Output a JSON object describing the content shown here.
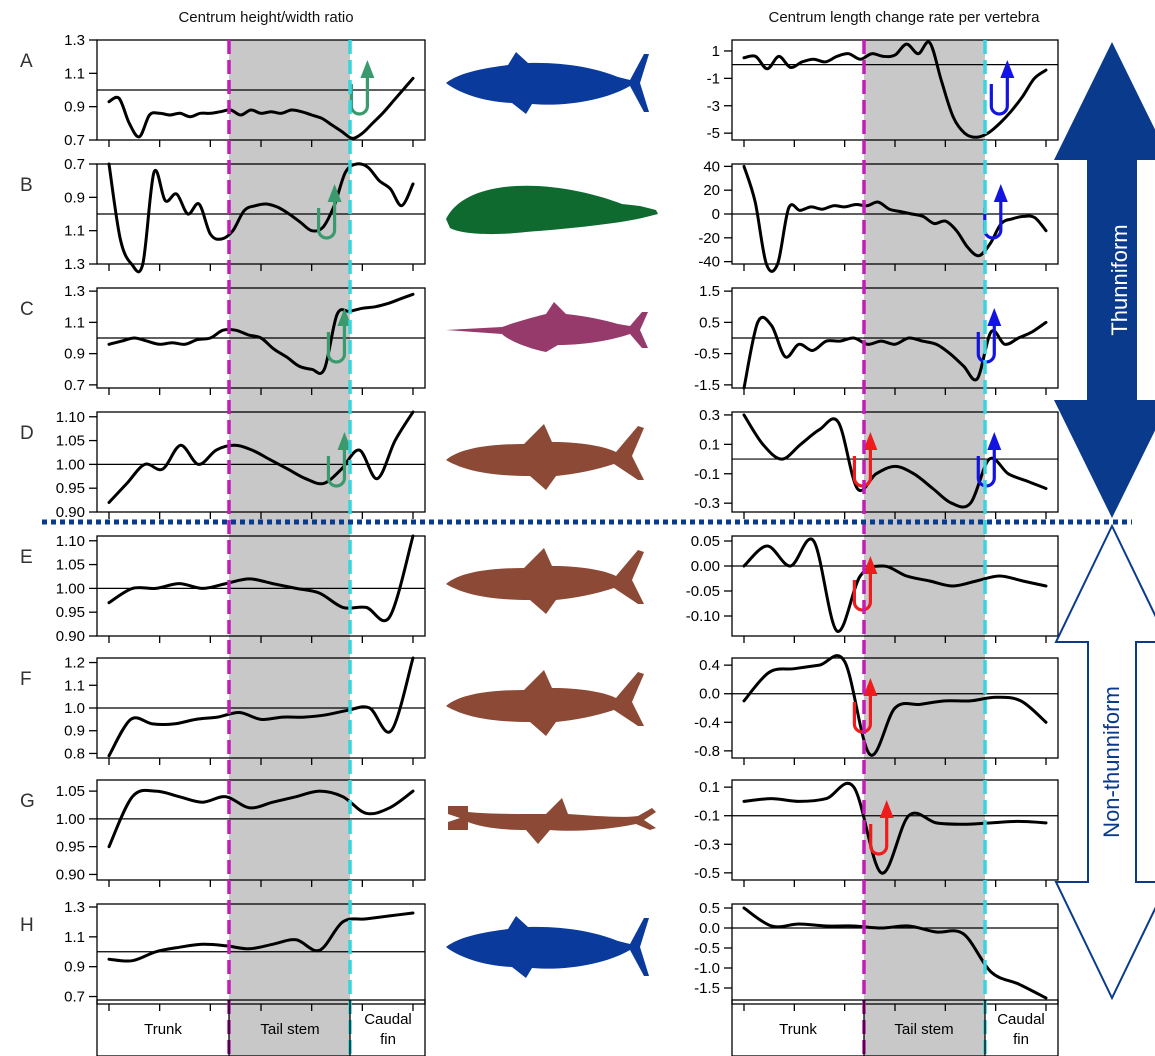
{
  "titles": {
    "left": "Centrum height/width ratio",
    "right": "Centrum length change rate per vertebra"
  },
  "segments": {
    "trunk": "Trunk",
    "tail_stem": "Tail stem",
    "caudal_fin_1": "Caudal",
    "caudal_fin_2": "fin"
  },
  "groups": {
    "thunniform": "Thunniform",
    "non_thunniform": "Non-thunniform"
  },
  "colors": {
    "tail_stem_shade": "#c8c8c8",
    "start_line": "#c21db6",
    "end_line": "#39d4dc",
    "marker_green": "#3a9a6e",
    "marker_blue": "#1414e0",
    "marker_red": "#ee1c1c",
    "tuna_blue": "#0a3a9c",
    "whale_green": "#0e6a2e",
    "marlin_purple": "#963a6c",
    "shark_brown": "#8c4a36",
    "group_arrow": "#0a3a8c"
  },
  "icons": [
    "tuna-silhouette-icon",
    "whale-silhouette-icon",
    "marlin-silhouette-icon",
    "shark-silhouette-icon",
    "hammerhead-silhouette-icon"
  ],
  "chart_data": {
    "type": "line",
    "x_segments": [
      "Trunk",
      "Tail stem",
      "Caudal fin"
    ],
    "panels": [
      {
        "label": "A",
        "silhouette": "tuna",
        "left": {
          "ylim": [
            0.7,
            1.3
          ],
          "ticks": [
            "0.7",
            "0.9",
            "1.1",
            "1.3"
          ],
          "tick_values": [
            0.7,
            0.9,
            1.1,
            1.3
          ],
          "ref": 1.0,
          "inverted": false,
          "y": [
            0.93,
            0.95,
            0.8,
            0.72,
            0.85,
            0.86,
            0.85,
            0.86,
            0.84,
            0.86,
            0.86,
            0.87,
            0.88,
            0.85,
            0.88,
            0.86,
            0.87,
            0.86,
            0.88,
            0.87,
            0.85,
            0.83,
            0.79,
            0.75,
            0.71,
            0.74,
            0.8,
            0.86,
            0.93,
            1.0,
            1.07
          ],
          "markers": [
            {
              "type": "green",
              "x": 0.8
            }
          ]
        },
        "right": {
          "ylim": [
            -5.5,
            1.8
          ],
          "ticks": [
            "1",
            "-1",
            "-3",
            "-5"
          ],
          "tick_values": [
            1,
            -1,
            -3,
            -5
          ],
          "ref": 0.0,
          "inverted": false,
          "y": [
            0.5,
            0.6,
            -0.3,
            0.6,
            -0.2,
            0.2,
            0.4,
            0.2,
            0.6,
            0.8,
            0.4,
            0.8,
            0.6,
            0.7,
            1.5,
            0.8,
            1.6,
            -1.2,
            -3.8,
            -5.0,
            -5.3,
            -5.0,
            -4.3,
            -3.4,
            -2.3,
            -1.0,
            -0.4
          ],
          "markers": [
            {
              "type": "blue",
              "x": 0.82
            }
          ]
        }
      },
      {
        "label": "B",
        "silhouette": "whale",
        "left": {
          "ylim": [
            0.7,
            1.3
          ],
          "ticks": [
            "0.7",
            "0.9",
            "1.1",
            "1.3"
          ],
          "tick_values": [
            0.7,
            0.9,
            1.1,
            1.3
          ],
          "ref": 1.0,
          "inverted": true,
          "y": [
            0.7,
            1.15,
            1.32,
            1.33,
            0.75,
            0.92,
            0.88,
            1.0,
            0.94,
            1.12,
            1.15,
            1.1,
            0.98,
            0.95,
            0.94,
            0.96,
            1.0,
            1.05,
            1.1,
            1.08,
            0.95,
            0.75,
            0.68,
            0.72,
            0.8,
            0.85,
            0.95,
            0.82
          ],
          "markers": [
            {
              "type": "green",
              "x": 0.7
            }
          ]
        },
        "right": {
          "ylim": [
            -42,
            42
          ],
          "ticks": [
            "40",
            "20",
            "0",
            "-20",
            "-40"
          ],
          "tick_values": [
            40,
            20,
            0,
            -20,
            -40
          ],
          "ref": 0.0,
          "inverted": false,
          "y": [
            40,
            10,
            -42,
            -42,
            5,
            3,
            6,
            4,
            7,
            6,
            8,
            7,
            10,
            4,
            2,
            0,
            -2,
            -8,
            -6,
            -14,
            -28,
            -35,
            -25,
            -8,
            -4,
            -2,
            -3,
            -14
          ],
          "markers": [
            {
              "type": "blue",
              "x": 0.8
            }
          ]
        }
      },
      {
        "label": "C",
        "silhouette": "marlin",
        "left": {
          "ylim": [
            0.68,
            1.32
          ],
          "ticks": [
            "0.7",
            "0.9",
            "1.1",
            "1.3"
          ],
          "tick_values": [
            0.7,
            0.9,
            1.1,
            1.3
          ],
          "ref": 1.0,
          "inverted": false,
          "y": [
            0.96,
            0.98,
            1.0,
            0.98,
            0.96,
            0.97,
            0.96,
            0.99,
            1.0,
            1.05,
            1.05,
            1.02,
            1.0,
            0.93,
            0.88,
            0.82,
            0.8,
            0.8,
            1.15,
            1.17,
            1.19,
            1.2,
            1.22,
            1.25,
            1.28
          ],
          "markers": [
            {
              "type": "green",
              "x": 0.73
            }
          ]
        },
        "right": {
          "ylim": [
            -1.6,
            1.6
          ],
          "ticks": [
            "1.5",
            "0.5",
            "-0.5",
            "-1.5"
          ],
          "tick_values": [
            1.5,
            0.5,
            -0.5,
            -1.5
          ],
          "ref": 0.0,
          "inverted": false,
          "y": [
            -1.6,
            0.5,
            0.4,
            -0.6,
            -0.2,
            -0.4,
            -0.1,
            -0.1,
            0.0,
            -0.2,
            -0.1,
            -0.2,
            0.0,
            -0.1,
            -0.2,
            -0.5,
            -0.9,
            -1.3,
            0.2,
            -0.2,
            0.0,
            0.2,
            0.5
          ],
          "markers": [
            {
              "type": "blue",
              "x": 0.78
            }
          ]
        }
      },
      {
        "label": "D",
        "silhouette": "shark",
        "left": {
          "ylim": [
            0.9,
            1.11
          ],
          "ticks": [
            "1.10",
            "1.05",
            "1.00",
            "0.95",
            "0.90"
          ],
          "tick_values": [
            1.1,
            1.05,
            1.0,
            0.95,
            0.9
          ],
          "ref": 1.0,
          "inverted": false,
          "y": [
            0.92,
            0.96,
            1.0,
            0.99,
            1.04,
            1.0,
            1.03,
            1.04,
            1.03,
            1.01,
            0.99,
            0.97,
            0.96,
            0.99,
            1.03,
            0.97,
            1.05,
            1.11
          ],
          "markers": [
            {
              "type": "green",
              "x": 0.73
            }
          ]
        },
        "right": {
          "ylim": [
            -0.36,
            0.32
          ],
          "ticks": [
            "0.3",
            "0.1",
            "-0.1",
            "-0.3"
          ],
          "tick_values": [
            0.3,
            0.1,
            -0.1,
            -0.3
          ],
          "ref": 0.0,
          "inverted": false,
          "y": [
            0.3,
            0.1,
            0.0,
            0.1,
            0.2,
            0.25,
            -0.2,
            -0.1,
            -0.05,
            -0.1,
            -0.2,
            -0.3,
            -0.3,
            0.0,
            -0.1,
            -0.15,
            -0.2
          ],
          "markers": [
            {
              "type": "red",
              "x": 0.4
            },
            {
              "type": "blue",
              "x": 0.78
            }
          ]
        }
      },
      {
        "label": "E",
        "silhouette": "shark",
        "left": {
          "ylim": [
            0.9,
            1.11
          ],
          "ticks": [
            "1.10",
            "1.05",
            "1.00",
            "0.95",
            "0.90"
          ],
          "tick_values": [
            1.1,
            1.05,
            1.0,
            0.95,
            0.9
          ],
          "ref": 1.0,
          "inverted": false,
          "y": [
            0.97,
            1.0,
            1.0,
            1.01,
            1.0,
            1.01,
            1.02,
            1.01,
            1.0,
            0.99,
            0.96,
            0.96,
            0.94,
            1.11
          ],
          "markers": []
        },
        "right": {
          "ylim": [
            -0.14,
            0.06
          ],
          "ticks": [
            "0.05",
            "0.00",
            "-0.05",
            "-0.10"
          ],
          "tick_values": [
            0.05,
            0.0,
            -0.05,
            -0.1
          ],
          "ref": 0.0,
          "inverted": false,
          "y": [
            0.0,
            0.04,
            0.0,
            0.05,
            -0.13,
            -0.02,
            0.0,
            -0.02,
            -0.03,
            -0.04,
            -0.03,
            -0.02,
            -0.03,
            -0.04
          ],
          "markers": [
            {
              "type": "red",
              "x": 0.4
            }
          ]
        }
      },
      {
        "label": "F",
        "silhouette": "shark",
        "left": {
          "ylim": [
            0.78,
            1.22
          ],
          "ticks": [
            "1.2",
            "1.1",
            "1.0",
            "0.9",
            "0.8"
          ],
          "tick_values": [
            1.2,
            1.1,
            1.0,
            0.9,
            0.8
          ],
          "ref": 1.0,
          "inverted": false,
          "y": [
            0.79,
            0.95,
            0.93,
            0.93,
            0.95,
            0.96,
            0.98,
            0.95,
            0.96,
            0.96,
            0.97,
            0.99,
            1.0,
            0.9,
            1.22
          ],
          "markers": []
        },
        "right": {
          "ylim": [
            -0.9,
            0.5
          ],
          "ticks": [
            "0.4",
            "0.0",
            "-0.4",
            "-0.8"
          ],
          "tick_values": [
            0.4,
            0.0,
            -0.4,
            -0.8
          ],
          "ref": 0.0,
          "inverted": false,
          "y": [
            -0.1,
            0.3,
            0.35,
            0.4,
            0.45,
            -0.85,
            -0.2,
            -0.15,
            -0.1,
            -0.1,
            -0.05,
            -0.1,
            -0.4
          ],
          "markers": [
            {
              "type": "red",
              "x": 0.4
            }
          ]
        }
      },
      {
        "label": "G",
        "silhouette": "hammerhead",
        "left": {
          "ylim": [
            0.89,
            1.07
          ],
          "ticks": [
            "1.05",
            "1.00",
            "0.95",
            "0.90"
          ],
          "tick_values": [
            1.05,
            1.0,
            0.95,
            0.9
          ],
          "ref": 1.0,
          "inverted": false,
          "y": [
            0.95,
            1.04,
            1.05,
            1.04,
            1.03,
            1.04,
            1.02,
            1.03,
            1.04,
            1.05,
            1.04,
            1.01,
            1.02,
            1.05
          ],
          "markers": []
        },
        "right": {
          "ylim": [
            -0.55,
            0.15
          ],
          "ticks": [
            "0.1",
            "-0.1",
            "-0.3",
            "-0.5"
          ],
          "tick_values": [
            0.1,
            -0.1,
            -0.3,
            -0.5
          ],
          "ref": -0.1,
          "inverted": false,
          "y": [
            0.0,
            0.02,
            0.0,
            0.02,
            0.1,
            -0.5,
            -0.1,
            -0.15,
            -0.16,
            -0.15,
            -0.14,
            -0.15
          ],
          "markers": [
            {
              "type": "red",
              "x": 0.45
            }
          ]
        }
      },
      {
        "label": "H",
        "silhouette": "tuna",
        "left": {
          "ylim": [
            0.65,
            1.32
          ],
          "ticks": [
            "1.3",
            "1.1",
            "0.9",
            "0.7"
          ],
          "tick_values": [
            1.3,
            1.1,
            0.9,
            0.7
          ],
          "ref": 1.0,
          "inverted": false,
          "y": [
            0.95,
            0.94,
            1.0,
            1.03,
            1.05,
            1.04,
            1.02,
            1.05,
            1.08,
            1.01,
            1.2,
            1.22,
            1.24,
            1.26
          ],
          "markers": []
        },
        "right": {
          "ylim": [
            -1.9,
            0.6
          ],
          "ticks": [
            "0.5",
            "0.0",
            "-0.5",
            "-1.0",
            "-1.5"
          ],
          "tick_values": [
            0.5,
            0.0,
            -0.5,
            -1.0,
            -1.5
          ],
          "ref": 0.0,
          "inverted": false,
          "y": [
            0.5,
            0.05,
            0.1,
            0.05,
            0.05,
            0.0,
            0.05,
            -0.1,
            -0.15,
            -1.1,
            -1.4,
            -1.75
          ],
          "markers": []
        }
      }
    ]
  }
}
